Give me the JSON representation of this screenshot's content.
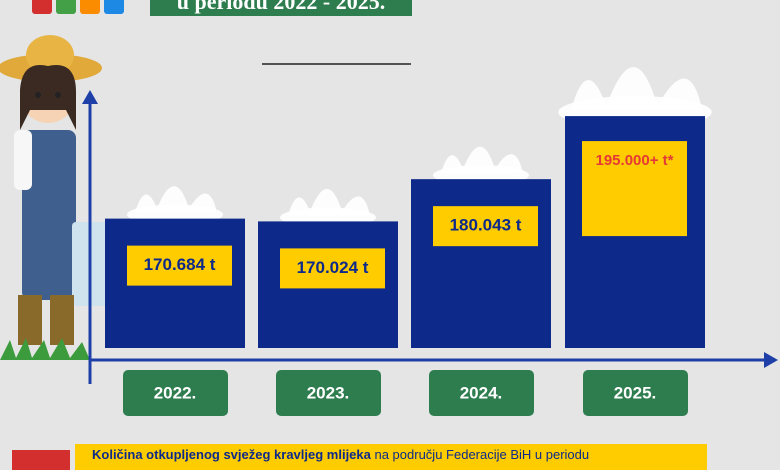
{
  "chart_data": {
    "type": "bar",
    "title": "u periodu 2022 - 2025.",
    "categories": [
      "2022.",
      "2023.",
      "2024.",
      "2025."
    ],
    "values": [
      170684,
      170024,
      180043,
      195000
    ],
    "value_labels": [
      "170.684 t",
      "170.024 t",
      "180.043 t",
      "195.000+ t*"
    ],
    "label_colors": [
      "#0d2a8a",
      "#0d2a8a",
      "#0d2a8a",
      "#e53935"
    ],
    "color": "#0d2a8a",
    "ylim": [
      140000,
      200000
    ],
    "footer": {
      "bold": "Količina otkupljenog svježeg kravljeg mlijeka",
      "text": " na području Federacije BiH u periodu"
    }
  }
}
